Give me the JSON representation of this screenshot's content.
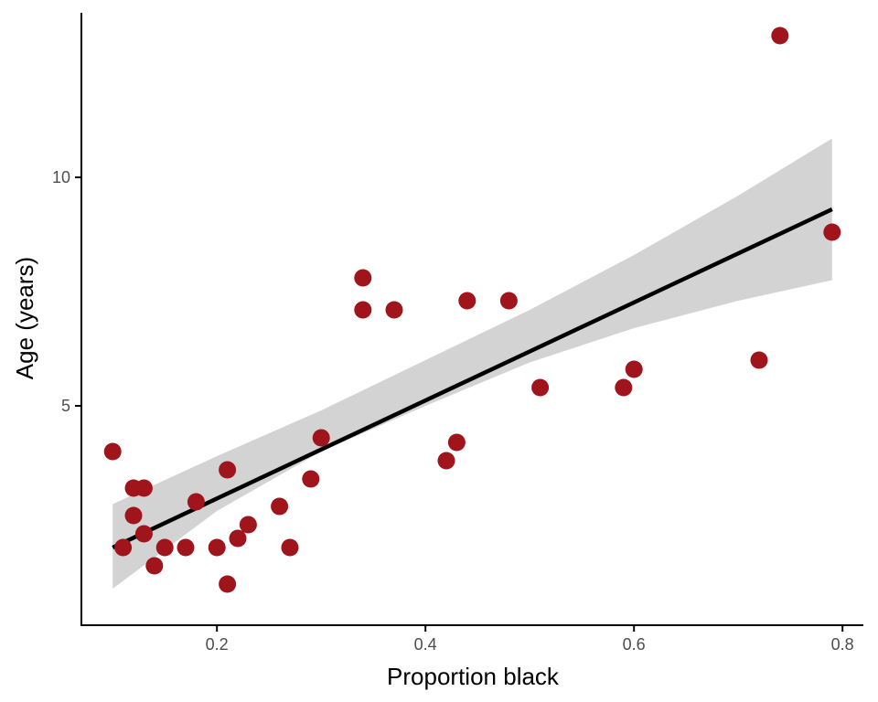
{
  "chart_data": {
    "type": "scatter",
    "xlabel": "Proportion black",
    "ylabel": "Age (years)",
    "xlim": [
      0.07,
      0.82
    ],
    "ylim": [
      0.2,
      13.6
    ],
    "x_ticks": [
      {
        "value": 0.2,
        "label": "0.2"
      },
      {
        "value": 0.4,
        "label": "0.4"
      },
      {
        "value": 0.6,
        "label": "0.6"
      },
      {
        "value": 0.8,
        "label": "0.8"
      }
    ],
    "y_ticks": [
      {
        "value": 5,
        "label": "5"
      },
      {
        "value": 10,
        "label": "10"
      }
    ],
    "grid": false,
    "point_color": "#a0141c",
    "line_color": "#000000",
    "band_color": "#d3d3d3",
    "points": [
      {
        "x": 0.1,
        "y": 4.0
      },
      {
        "x": 0.11,
        "y": 1.9
      },
      {
        "x": 0.12,
        "y": 3.2
      },
      {
        "x": 0.12,
        "y": 2.6
      },
      {
        "x": 0.13,
        "y": 3.2
      },
      {
        "x": 0.13,
        "y": 2.2
      },
      {
        "x": 0.14,
        "y": 1.5
      },
      {
        "x": 0.15,
        "y": 1.9
      },
      {
        "x": 0.17,
        "y": 1.9
      },
      {
        "x": 0.18,
        "y": 2.9
      },
      {
        "x": 0.2,
        "y": 1.9
      },
      {
        "x": 0.21,
        "y": 3.6
      },
      {
        "x": 0.21,
        "y": 1.1
      },
      {
        "x": 0.22,
        "y": 2.1
      },
      {
        "x": 0.23,
        "y": 2.4
      },
      {
        "x": 0.26,
        "y": 2.8
      },
      {
        "x": 0.27,
        "y": 1.9
      },
      {
        "x": 0.29,
        "y": 3.4
      },
      {
        "x": 0.3,
        "y": 4.3
      },
      {
        "x": 0.34,
        "y": 7.8
      },
      {
        "x": 0.34,
        "y": 7.1
      },
      {
        "x": 0.37,
        "y": 7.1
      },
      {
        "x": 0.42,
        "y": 3.8
      },
      {
        "x": 0.43,
        "y": 4.2
      },
      {
        "x": 0.44,
        "y": 7.3
      },
      {
        "x": 0.48,
        "y": 7.3
      },
      {
        "x": 0.51,
        "y": 5.4
      },
      {
        "x": 0.59,
        "y": 5.4
      },
      {
        "x": 0.6,
        "y": 5.8
      },
      {
        "x": 0.72,
        "y": 6.0
      },
      {
        "x": 0.74,
        "y": 13.1
      },
      {
        "x": 0.79,
        "y": 8.8
      }
    ],
    "fit_line": [
      {
        "x": 0.1,
        "y": 1.9
      },
      {
        "x": 0.79,
        "y": 9.3
      }
    ],
    "confidence_band": {
      "x": [
        0.1,
        0.2,
        0.3,
        0.4,
        0.5,
        0.6,
        0.7,
        0.79
      ],
      "lower": [
        1.0,
        2.7,
        4.0,
        5.0,
        5.95,
        6.7,
        7.3,
        7.75
      ],
      "upper": [
        2.85,
        3.9,
        4.9,
        6.0,
        7.1,
        8.3,
        9.6,
        10.85
      ]
    }
  }
}
